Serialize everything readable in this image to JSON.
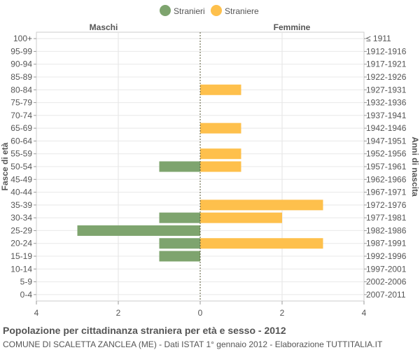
{
  "chart_data": {
    "type": "bar",
    "orientation": "horizontal-population-pyramid",
    "title": "Popolazione per cittadinanza straniera per età e sesso - 2012",
    "subtitle": "COMUNE DI SCALETTA ZANCLEA (ME) - Dati ISTAT 1° gennaio 2012 - Elaborazione TUTTITALIA.IT",
    "ylabel_left": "Fasce di età",
    "ylabel_right": "Anni di nascita",
    "side_labels": {
      "left": "Maschi",
      "right": "Femmine"
    },
    "legend": {
      "placement": "top-center",
      "items": [
        {
          "name": "Stranieri",
          "color": "#7ea46e"
        },
        {
          "name": "Straniere",
          "color": "#fec04c"
        }
      ]
    },
    "age_groups": [
      "100+",
      "95-99",
      "90-94",
      "85-89",
      "80-84",
      "75-79",
      "70-74",
      "65-69",
      "60-64",
      "55-59",
      "50-54",
      "45-49",
      "40-44",
      "35-39",
      "30-34",
      "25-29",
      "20-24",
      "15-19",
      "10-14",
      "5-9",
      "0-4"
    ],
    "birth_years": [
      "≤ 1911",
      "1912-1916",
      "1917-1921",
      "1922-1926",
      "1927-1931",
      "1932-1936",
      "1937-1941",
      "1942-1946",
      "1947-1951",
      "1952-1956",
      "1957-1961",
      "1962-1966",
      "1967-1971",
      "1972-1976",
      "1977-1981",
      "1982-1986",
      "1987-1991",
      "1992-1996",
      "1997-2001",
      "2002-2006",
      "2007-2011"
    ],
    "series": [
      {
        "name": "Stranieri",
        "side": "left",
        "color": "#7ea46e",
        "values": [
          0,
          0,
          0,
          0,
          0,
          0,
          0,
          0,
          0,
          0,
          1,
          0,
          0,
          0,
          1,
          3,
          1,
          1,
          0,
          0,
          0
        ]
      },
      {
        "name": "Straniere",
        "side": "right",
        "color": "#fec04c",
        "values": [
          0,
          0,
          0,
          0,
          1,
          0,
          0,
          1,
          0,
          1,
          1,
          0,
          0,
          3,
          2,
          0,
          3,
          0,
          0,
          0,
          0
        ]
      }
    ],
    "x_ticks": [
      "4",
      "2",
      "0",
      "2",
      "4"
    ],
    "xlim": [
      -4,
      4
    ],
    "grid": true
  }
}
